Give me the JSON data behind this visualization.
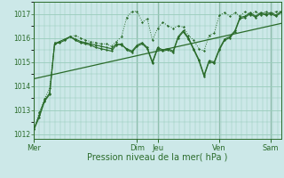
{
  "xlabel": "Pression niveau de la mer( hPa )",
  "bg_color": "#cce8e8",
  "grid_color": "#99ccbb",
  "line_color": "#2a6b2a",
  "ylim": [
    1011.8,
    1017.5
  ],
  "yticks": [
    1012,
    1013,
    1014,
    1015,
    1016,
    1017
  ],
  "day_labels": [
    "Mer",
    "Dim",
    "Jeu",
    "Ven",
    "Sam"
  ],
  "day_positions": [
    0.0,
    0.417,
    0.5,
    0.75,
    0.958
  ],
  "xlim": [
    0.0,
    1.0
  ],
  "line1_x": [
    0.0,
    0.021,
    0.042,
    0.063,
    0.083,
    0.104,
    0.125,
    0.146,
    0.167,
    0.188,
    0.208,
    0.229,
    0.25,
    0.271,
    0.292,
    0.313,
    0.333,
    0.354,
    0.375,
    0.396,
    0.417,
    0.438,
    0.458,
    0.479,
    0.5,
    0.521,
    0.542,
    0.563,
    0.583,
    0.604,
    0.625,
    0.646,
    0.667,
    0.688,
    0.708,
    0.729,
    0.75,
    0.771,
    0.792,
    0.813,
    0.833,
    0.854,
    0.875,
    0.896,
    0.917,
    0.938,
    0.958,
    0.979,
    1.0
  ],
  "line1_y": [
    1012.2,
    1012.7,
    1013.35,
    1013.65,
    1015.75,
    1015.85,
    1015.95,
    1016.05,
    1015.95,
    1015.85,
    1015.8,
    1015.75,
    1015.7,
    1015.65,
    1015.6,
    1015.55,
    1015.75,
    1015.7,
    1015.55,
    1015.45,
    1015.7,
    1015.8,
    1015.6,
    1015.0,
    1015.6,
    1015.5,
    1015.55,
    1015.45,
    1016.05,
    1016.3,
    1016.0,
    1015.55,
    1015.1,
    1014.45,
    1015.05,
    1015.0,
    1015.55,
    1015.95,
    1016.05,
    1016.3,
    1016.85,
    1016.9,
    1017.05,
    1016.9,
    1017.05,
    1017.0,
    1017.05,
    1016.95,
    1017.1
  ],
  "line2_x": [
    0.0,
    0.021,
    0.042,
    0.063,
    0.083,
    0.104,
    0.125,
    0.146,
    0.167,
    0.188,
    0.208,
    0.229,
    0.25,
    0.271,
    0.292,
    0.313,
    0.333,
    0.354,
    0.375,
    0.396,
    0.417,
    0.438,
    0.458,
    0.479,
    0.5,
    0.521,
    0.542,
    0.563,
    0.583,
    0.604,
    0.625,
    0.646,
    0.667,
    0.688,
    0.708,
    0.729,
    0.75,
    0.771,
    0.792,
    0.813,
    0.833,
    0.854,
    0.875,
    0.896,
    0.917,
    0.938,
    0.958,
    0.979,
    1.0
  ],
  "line2_y": [
    1012.2,
    1012.8,
    1013.4,
    1013.7,
    1015.75,
    1015.8,
    1015.9,
    1016.05,
    1015.9,
    1015.8,
    1015.75,
    1015.7,
    1015.6,
    1015.55,
    1015.5,
    1015.45,
    1015.7,
    1015.75,
    1015.5,
    1015.4,
    1015.65,
    1015.75,
    1015.55,
    1014.95,
    1015.55,
    1015.45,
    1015.5,
    1015.4,
    1016.0,
    1016.25,
    1015.95,
    1015.5,
    1015.05,
    1014.4,
    1015.0,
    1014.95,
    1015.5,
    1015.9,
    1016.0,
    1016.25,
    1016.8,
    1016.85,
    1017.0,
    1016.85,
    1017.0,
    1016.95,
    1017.0,
    1016.9,
    1017.05
  ],
  "dotted_x": [
    0.0,
    0.021,
    0.042,
    0.063,
    0.083,
    0.104,
    0.125,
    0.146,
    0.167,
    0.188,
    0.208,
    0.229,
    0.25,
    0.271,
    0.292,
    0.313,
    0.333,
    0.354,
    0.375,
    0.396,
    0.417,
    0.438,
    0.458,
    0.479,
    0.5,
    0.521,
    0.542,
    0.563,
    0.583,
    0.604,
    0.625,
    0.646,
    0.667,
    0.688,
    0.708,
    0.729,
    0.75,
    0.771,
    0.792,
    0.813,
    0.833,
    0.854,
    0.875,
    0.896,
    0.917,
    0.938,
    0.958,
    0.979,
    1.0
  ],
  "dotted_y": [
    1012.2,
    1012.9,
    1013.45,
    1013.9,
    1015.8,
    1015.85,
    1015.95,
    1016.05,
    1016.1,
    1016.0,
    1015.9,
    1015.85,
    1015.8,
    1015.75,
    1015.75,
    1015.65,
    1015.85,
    1016.05,
    1016.85,
    1017.1,
    1017.1,
    1016.65,
    1016.8,
    1015.9,
    1016.4,
    1016.65,
    1016.5,
    1016.4,
    1016.5,
    1016.45,
    1016.1,
    1015.9,
    1015.55,
    1015.45,
    1016.1,
    1016.2,
    1016.95,
    1017.05,
    1016.9,
    1017.05,
    1016.9,
    1017.1,
    1016.95,
    1017.1,
    1016.95,
    1017.1,
    1017.0,
    1017.1,
    1017.1
  ],
  "trend_x": [
    0.0,
    1.0
  ],
  "trend_y": [
    1014.3,
    1016.6
  ]
}
